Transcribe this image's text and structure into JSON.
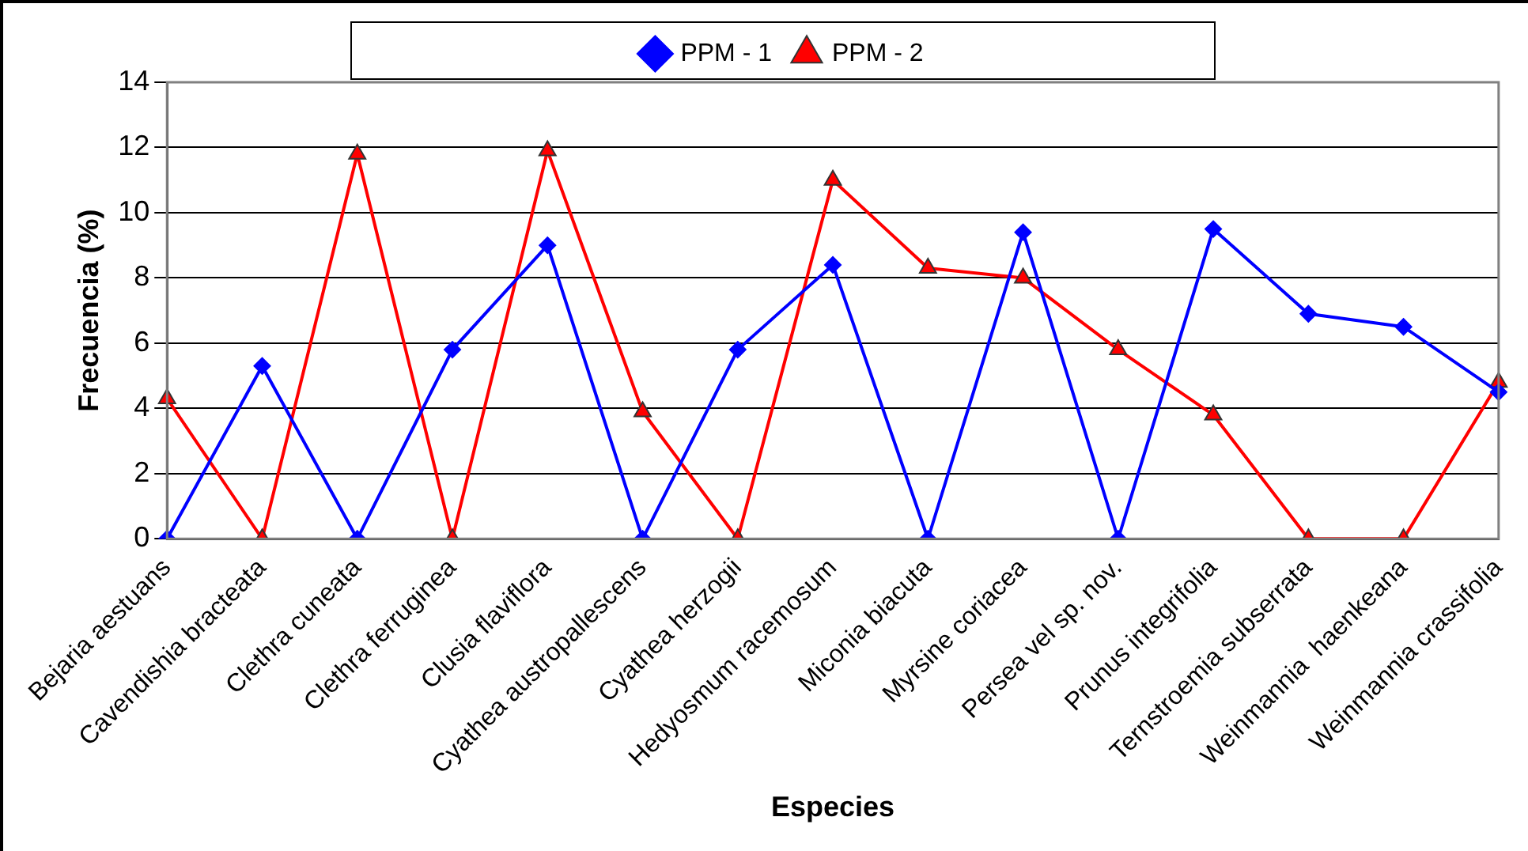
{
  "chart_data": {
    "type": "line",
    "xlabel": "Especies",
    "ylabel": "Frecuencia (%)",
    "categories": [
      "Bejaria aestuans",
      "Cavendishia bracteata",
      "Clethra cuneata",
      "Clethra ferruginea",
      "Clusia flaviflora",
      "Cyathea austropallescens",
      "Cyathea herzogii",
      "Hedyosmum racemosum",
      "Miconia biacuta",
      "Myrsine coriacea",
      "Persea vel sp. nov.",
      "Prunus integrifolia",
      "Ternstroemia subserrata",
      "Weinmannia  haenkeana",
      "Weinmannia crassifolia"
    ],
    "series": [
      {
        "name": "PPM - 1",
        "color": "#0000ff",
        "marker": "diamond",
        "values": [
          0,
          5.3,
          0,
          5.8,
          9.0,
          0,
          5.8,
          8.4,
          0,
          9.4,
          0,
          9.5,
          6.9,
          6.5,
          4.5
        ]
      },
      {
        "name": "PPM - 2",
        "color": "#ff0000",
        "marker": "triangle",
        "values": [
          4.3,
          0,
          11.8,
          0,
          11.9,
          3.9,
          0,
          11.0,
          8.3,
          8.0,
          5.8,
          3.8,
          0,
          0,
          4.8
        ]
      }
    ],
    "ylim": [
      0,
      14
    ],
    "yticks": [
      0,
      2,
      4,
      6,
      8,
      10,
      12,
      14
    ],
    "grid": "y",
    "legend": "top"
  }
}
